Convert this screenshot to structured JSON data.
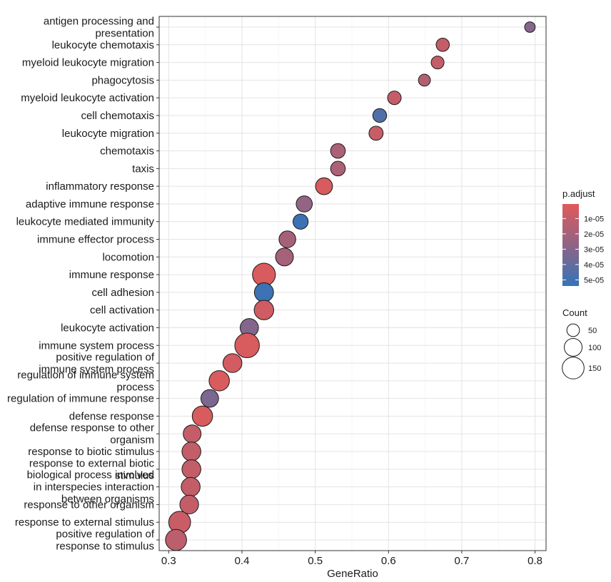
{
  "chart_data": {
    "type": "scatter",
    "xlabel": "GeneRatio",
    "xlim": [
      0.287,
      0.815
    ],
    "xticks": [
      0.3,
      0.4,
      0.5,
      0.6,
      0.7,
      0.8
    ],
    "xtick_labels": [
      "0.3",
      "0.4",
      "0.5",
      "0.6",
      "0.7",
      "0.8"
    ],
    "grid": true,
    "legend_placement": "right",
    "color_scale": {
      "title": "p.adjust",
      "low_color": "#E05A5A",
      "mid_color": "#8F6485",
      "high_color": "#3573B8",
      "min": 5e-07,
      "max": 5.4e-05,
      "ticks": [
        1e-05,
        2e-05,
        3e-05,
        4e-05,
        5e-05
      ],
      "tick_labels": [
        "1e-05",
        "2e-05",
        "3e-05",
        "4e-05",
        "5e-05"
      ]
    },
    "size_scale": {
      "title": "Count",
      "breaks": [
        50,
        100,
        150
      ],
      "break_labels": [
        "50",
        "100",
        "150"
      ]
    },
    "points": [
      {
        "label": [
          "antigen processing and",
          "presentation"
        ],
        "x": 0.793,
        "count": 35,
        "padj": 3e-05
      },
      {
        "label": [
          "leukocyte chemotaxis"
        ],
        "x": 0.674,
        "count": 55,
        "padj": 1e-05
      },
      {
        "label": [
          "myeloid leukocyte migration"
        ],
        "x": 0.667,
        "count": 52,
        "padj": 1e-05
      },
      {
        "label": [
          "phagocytosis"
        ],
        "x": 0.649,
        "count": 45,
        "padj": 1.5e-05
      },
      {
        "label": [
          "myeloid leukocyte activation"
        ],
        "x": 0.608,
        "count": 58,
        "padj": 1e-05
      },
      {
        "label": [
          "cell chemotaxis"
        ],
        "x": 0.588,
        "count": 60,
        "padj": 4.6e-05
      },
      {
        "label": [
          "leukocyte migration"
        ],
        "x": 0.583,
        "count": 63,
        "padj": 8e-06
      },
      {
        "label": [
          "chemotaxis"
        ],
        "x": 0.531,
        "count": 68,
        "padj": 1.8e-05
      },
      {
        "label": [
          "taxis"
        ],
        "x": 0.531,
        "count": 68,
        "padj": 1.8e-05
      },
      {
        "label": [
          "inflammatory response"
        ],
        "x": 0.512,
        "count": 90,
        "padj": 3e-06
      },
      {
        "label": [
          "adaptive immune response"
        ],
        "x": 0.485,
        "count": 82,
        "padj": 2.6e-05
      },
      {
        "label": [
          "leukocyte mediated immunity"
        ],
        "x": 0.48,
        "count": 72,
        "padj": 5.2e-05
      },
      {
        "label": [
          "immune effector process"
        ],
        "x": 0.462,
        "count": 88,
        "padj": 2e-05
      },
      {
        "label": [
          "locomotion"
        ],
        "x": 0.458,
        "count": 100,
        "padj": 2e-05
      },
      {
        "label": [
          "immune response"
        ],
        "x": 0.43,
        "count": 165,
        "padj": 3e-06
      },
      {
        "label": [
          "cell adhesion"
        ],
        "x": 0.43,
        "count": 115,
        "padj": 5.2e-05
      },
      {
        "label": [
          "cell activation"
        ],
        "x": 0.43,
        "count": 120,
        "padj": 6e-06
      },
      {
        "label": [
          "leukocyte activation"
        ],
        "x": 0.41,
        "count": 105,
        "padj": 3.1e-05
      },
      {
        "label": [
          "immune system process"
        ],
        "x": 0.407,
        "count": 190,
        "padj": 3e-06
      },
      {
        "label": [
          "positive regulation of",
          "immune system process"
        ],
        "x": 0.387,
        "count": 112,
        "padj": 5e-06
      },
      {
        "label": [
          "regulation of immune system",
          "process"
        ],
        "x": 0.369,
        "count": 130,
        "padj": 3e-06
      },
      {
        "label": [
          "regulation of immune response"
        ],
        "x": 0.356,
        "count": 98,
        "padj": 3.3e-05
      },
      {
        "label": [
          "defense response"
        ],
        "x": 0.346,
        "count": 130,
        "padj": 3e-06
      },
      {
        "label": [
          "defense response to other",
          "organism"
        ],
        "x": 0.332,
        "count": 100,
        "padj": 1e-05
      },
      {
        "label": [
          "response to biotic stimulus"
        ],
        "x": 0.331,
        "count": 112,
        "padj": 1e-05
      },
      {
        "label": [
          "response to external biotic",
          "stimulus"
        ],
        "x": 0.331,
        "count": 112,
        "padj": 1e-05
      },
      {
        "label": [
          "biological process involved",
          "in interspecies interaction",
          "between organisms"
        ],
        "x": 0.33,
        "count": 112,
        "padj": 1e-05
      },
      {
        "label": [
          "response to other organism"
        ],
        "x": 0.328,
        "count": 110,
        "padj": 1e-05
      },
      {
        "label": [
          "response to external stimulus"
        ],
        "x": 0.315,
        "count": 150,
        "padj": 8e-06
      },
      {
        "label": [
          "positive regulation of",
          "response to stimulus"
        ],
        "x": 0.31,
        "count": 140,
        "padj": 1.2e-05
      }
    ]
  }
}
